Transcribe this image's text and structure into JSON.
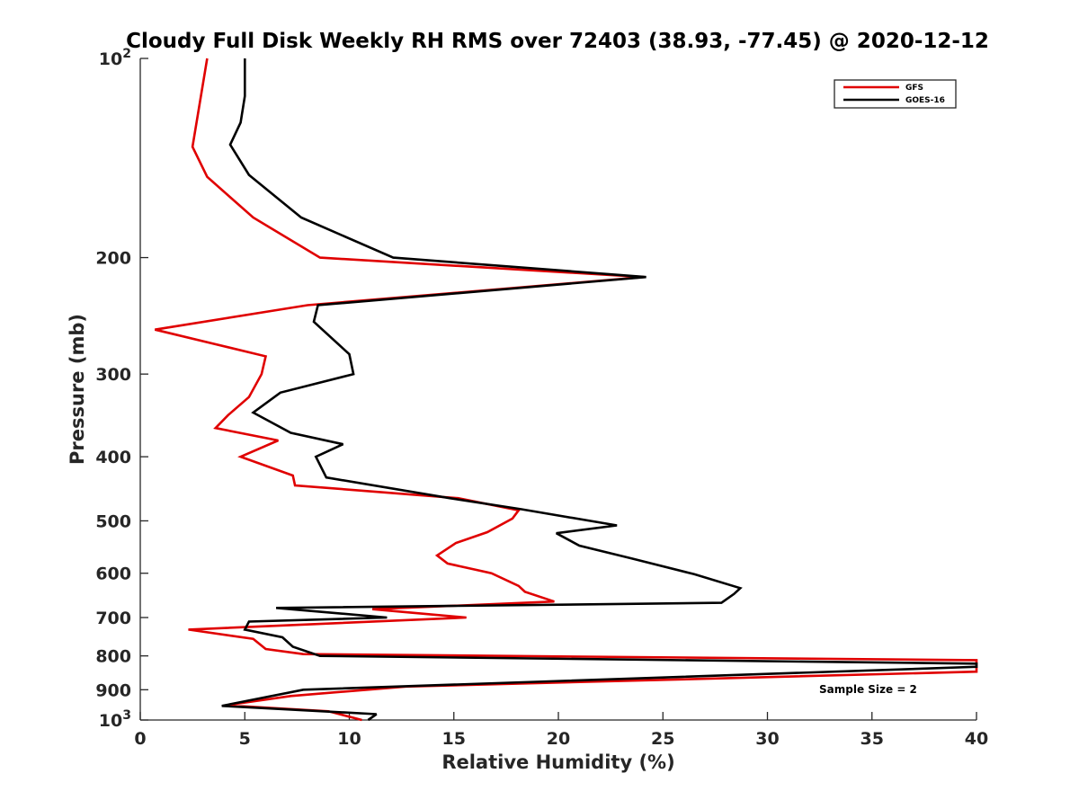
{
  "chart_data": {
    "type": "line",
    "title": "Cloudy Full Disk Weekly RH RMS over 72403 (38.93, -77.45) @ 2020-12-12",
    "xlabel": "Relative Humidity (%)",
    "ylabel": "Pressure (mb)",
    "xlim": [
      0,
      40
    ],
    "ylim": [
      100,
      1000
    ],
    "y_scale": "log",
    "y_reversed": true,
    "grid": false,
    "legend_position": "top-right",
    "x_ticks": [
      "0",
      "5",
      "10",
      "15",
      "20",
      "25",
      "30",
      "35",
      "40"
    ],
    "y_ticks": [
      {
        "value": 100,
        "base": "10",
        "exp": "2"
      },
      {
        "value": 200,
        "label": "200"
      },
      {
        "value": 300,
        "label": "300"
      },
      {
        "value": 400,
        "label": "400"
      },
      {
        "value": 500,
        "label": "500"
      },
      {
        "value": 600,
        "label": "600"
      },
      {
        "value": 700,
        "label": "700"
      },
      {
        "value": 800,
        "label": "800"
      },
      {
        "value": 900,
        "label": "900"
      },
      {
        "value": 1000,
        "base": "10",
        "exp": "3"
      }
    ],
    "series": [
      {
        "name": "GFS",
        "color": "#e00000",
        "points": [
          [
            3.2,
            100
          ],
          [
            2.5,
            136
          ],
          [
            3.2,
            151
          ],
          [
            5.4,
            174
          ],
          [
            8.6,
            200
          ],
          [
            24.1,
            214
          ],
          [
            8.0,
            236
          ],
          [
            0.7,
            257
          ],
          [
            6.0,
            282
          ],
          [
            5.8,
            300
          ],
          [
            5.2,
            325
          ],
          [
            4.2,
            346
          ],
          [
            3.6,
            362
          ],
          [
            6.6,
            378
          ],
          [
            4.8,
            400
          ],
          [
            7.3,
            427
          ],
          [
            7.4,
            442
          ],
          [
            15.2,
            462
          ],
          [
            18.1,
            482
          ],
          [
            17.8,
            496
          ],
          [
            16.6,
            520
          ],
          [
            15.1,
            540
          ],
          [
            14.2,
            564
          ],
          [
            14.7,
            580
          ],
          [
            16.8,
            600
          ],
          [
            18.1,
            627
          ],
          [
            18.4,
            640
          ],
          [
            19.8,
            662
          ],
          [
            11.1,
            680
          ],
          [
            15.6,
            700
          ],
          [
            2.3,
            730
          ],
          [
            5.4,
            754
          ],
          [
            6.0,
            781
          ],
          [
            7.8,
            795
          ],
          [
            40.0,
            812
          ],
          [
            40.0,
            845
          ],
          [
            12.7,
            890
          ],
          [
            7.2,
            920
          ],
          [
            4.1,
            950
          ],
          [
            9.0,
            970
          ],
          [
            10.6,
            1000
          ]
        ]
      },
      {
        "name": "GOES-16",
        "color": "#000000",
        "points": [
          [
            5.0,
            100
          ],
          [
            5.0,
            114
          ],
          [
            4.8,
            125
          ],
          [
            4.3,
            135
          ],
          [
            5.2,
            150
          ],
          [
            7.7,
            174
          ],
          [
            12.1,
            200
          ],
          [
            24.2,
            214
          ],
          [
            8.5,
            236
          ],
          [
            8.3,
            250
          ],
          [
            10.0,
            280
          ],
          [
            10.2,
            300
          ],
          [
            6.7,
            320
          ],
          [
            5.4,
            343
          ],
          [
            7.2,
            368
          ],
          [
            9.7,
            383
          ],
          [
            8.4,
            400
          ],
          [
            8.9,
            430
          ],
          [
            14.8,
            462
          ],
          [
            18.2,
            480
          ],
          [
            22.8,
            508
          ],
          [
            19.9,
            522
          ],
          [
            21.0,
            545
          ],
          [
            23.5,
            570
          ],
          [
            26.5,
            602
          ],
          [
            28.7,
            632
          ],
          [
            28.4,
            645
          ],
          [
            27.8,
            665
          ],
          [
            6.5,
            677
          ],
          [
            11.8,
            700
          ],
          [
            5.2,
            710
          ],
          [
            5.0,
            730
          ],
          [
            6.8,
            750
          ],
          [
            7.3,
            775
          ],
          [
            8.6,
            800
          ],
          [
            40.0,
            822
          ],
          [
            40.0,
            831
          ],
          [
            7.8,
            900
          ],
          [
            3.9,
            952
          ],
          [
            11.3,
            980
          ],
          [
            10.9,
            1000
          ]
        ]
      }
    ],
    "legend": [
      "GFS",
      "GOES-16"
    ],
    "annotation": "Sample Size = 2"
  }
}
